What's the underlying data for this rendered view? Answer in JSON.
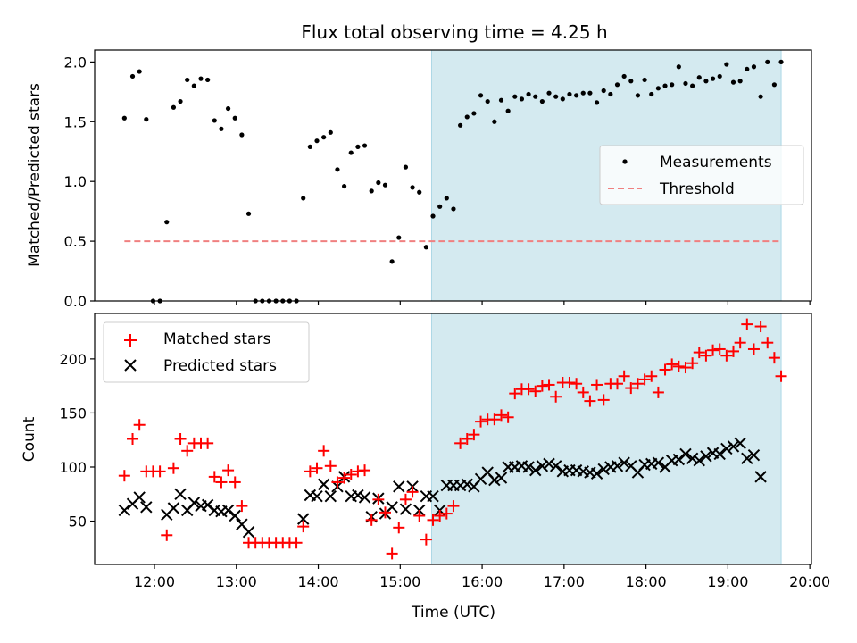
{
  "figure": {
    "title": "Flux total observing time = 4.25 h",
    "xlabel": "Time (UTC)",
    "colors": {
      "highlight": "#d4eaf0",
      "highlight_edge": "#add8e6",
      "measurement": "#000000",
      "threshold": "#f08080",
      "matched": "#ff0000",
      "predicted": "#000000"
    }
  },
  "chart_data": [
    {
      "type": "scatter",
      "ylabel": "Matched/Predicted stars",
      "ylim": [
        0,
        2.1
      ],
      "yticks": [
        0.0,
        0.5,
        1.0,
        1.5,
        2.0
      ],
      "ytick_labels": [
        "0.0",
        "0.5",
        "1.0",
        "1.5",
        "2.0"
      ],
      "xlim_hours": [
        11.27,
        20.02
      ],
      "highlight_span": [
        "15:23",
        "19:39"
      ],
      "grid": false,
      "legend_position": "center-right",
      "threshold": {
        "name": "Threshold",
        "y": 0.5,
        "x_range": [
          "11:38",
          "19:39"
        ]
      },
      "series": [
        {
          "name": "Measurements",
          "marker": "dot",
          "x": [
            "11:38",
            "11:44",
            "11:49",
            "11:54",
            "11:59",
            "12:04",
            "12:09",
            "12:14",
            "12:19",
            "12:24",
            "12:29",
            "12:34",
            "12:39",
            "12:44",
            "12:49",
            "12:54",
            "12:59",
            "13:04",
            "13:09",
            "13:14",
            "13:19",
            "13:24",
            "13:29",
            "13:34",
            "13:39",
            "13:44",
            "13:49",
            "13:54",
            "13:59",
            "14:04",
            "14:09",
            "14:14",
            "14:19",
            "14:24",
            "14:29",
            "14:34",
            "14:39",
            "14:44",
            "14:49",
            "14:54",
            "14:59",
            "15:04",
            "15:09",
            "15:14",
            "15:19",
            "15:24",
            "15:29",
            "15:34",
            "15:39",
            "15:44",
            "15:49",
            "15:54",
            "15:59",
            "16:04",
            "16:09",
            "16:14",
            "16:19",
            "16:24",
            "16:29",
            "16:34",
            "16:39",
            "16:44",
            "16:49",
            "16:54",
            "16:59",
            "17:04",
            "17:09",
            "17:14",
            "17:19",
            "17:24",
            "17:29",
            "17:34",
            "17:39",
            "17:44",
            "17:49",
            "17:54",
            "17:59",
            "18:04",
            "18:09",
            "18:14",
            "18:19",
            "18:24",
            "18:29",
            "18:34",
            "18:39",
            "18:44",
            "18:49",
            "18:54",
            "18:59",
            "19:04",
            "19:09",
            "19:14",
            "19:19",
            "19:24",
            "19:29",
            "19:34",
            "19:39"
          ],
          "y": [
            1.53,
            1.88,
            1.92,
            1.52,
            0.0,
            0.0,
            0.66,
            1.62,
            1.67,
            1.85,
            1.8,
            1.86,
            1.85,
            1.51,
            1.44,
            1.61,
            1.53,
            1.39,
            0.73,
            0.0,
            0.0,
            0.0,
            0.0,
            0.0,
            0.0,
            0.0,
            0.86,
            1.29,
            1.34,
            1.37,
            1.41,
            1.1,
            0.96,
            1.24,
            1.29,
            1.3,
            0.92,
            0.99,
            0.97,
            0.33,
            0.53,
            1.12,
            0.95,
            0.91,
            0.45,
            0.71,
            0.79,
            0.86,
            0.77,
            1.47,
            1.54,
            1.57,
            1.72,
            1.67,
            1.5,
            1.68,
            1.59,
            1.71,
            1.69,
            1.73,
            1.71,
            1.67,
            1.74,
            1.71,
            1.69,
            1.73,
            1.72,
            1.74,
            1.74,
            1.66,
            1.76,
            1.73,
            1.81,
            1.88,
            1.84,
            1.72,
            1.85,
            1.73,
            1.78,
            1.8,
            1.81,
            1.96,
            1.82,
            1.8,
            1.87,
            1.84,
            1.86,
            1.88,
            1.98,
            1.83,
            1.84,
            1.94,
            1.96,
            1.71,
            2.0,
            1.81,
            2.0
          ]
        }
      ]
    },
    {
      "type": "scatter",
      "ylabel": "Count",
      "ylim": [
        10,
        242
      ],
      "yticks": [
        50,
        100,
        150,
        200
      ],
      "ytick_labels": [
        "50",
        "100",
        "150",
        "200"
      ],
      "xlim_hours": [
        11.27,
        20.02
      ],
      "xticks": [
        "12:00",
        "13:00",
        "14:00",
        "15:00",
        "16:00",
        "17:00",
        "18:00",
        "19:00",
        "20:00"
      ],
      "highlight_span": [
        "15:23",
        "19:39"
      ],
      "grid": false,
      "legend_position": "top-left",
      "series": [
        {
          "name": "Matched stars",
          "marker": "plus",
          "x": [
            "11:38",
            "11:44",
            "11:49",
            "11:54",
            "11:59",
            "12:04",
            "12:09",
            "12:14",
            "12:19",
            "12:24",
            "12:29",
            "12:34",
            "12:39",
            "12:44",
            "12:49",
            "12:54",
            "12:59",
            "13:04",
            "13:09",
            "13:14",
            "13:19",
            "13:24",
            "13:29",
            "13:34",
            "13:39",
            "13:44",
            "13:49",
            "13:54",
            "13:59",
            "14:04",
            "14:09",
            "14:14",
            "14:19",
            "14:24",
            "14:29",
            "14:34",
            "14:39",
            "14:44",
            "14:49",
            "14:54",
            "14:59",
            "15:04",
            "15:09",
            "15:14",
            "15:19",
            "15:24",
            "15:29",
            "15:34",
            "15:39",
            "15:44",
            "15:49",
            "15:54",
            "15:59",
            "16:04",
            "16:09",
            "16:14",
            "16:19",
            "16:24",
            "16:29",
            "16:34",
            "16:39",
            "16:44",
            "16:49",
            "16:54",
            "16:59",
            "17:04",
            "17:09",
            "17:14",
            "17:19",
            "17:24",
            "17:29",
            "17:34",
            "17:39",
            "17:44",
            "17:49",
            "17:54",
            "17:59",
            "18:04",
            "18:09",
            "18:14",
            "18:19",
            "18:24",
            "18:29",
            "18:34",
            "18:39",
            "18:44",
            "18:49",
            "18:54",
            "18:59",
            "19:04",
            "19:09",
            "19:14",
            "19:19",
            "19:24",
            "19:29",
            "19:34",
            "19:39"
          ],
          "y": [
            92,
            126,
            139,
            96,
            96,
            96,
            37,
            99,
            126,
            115,
            122,
            122,
            122,
            91,
            86,
            97,
            86,
            64,
            30,
            30,
            30,
            30,
            30,
            30,
            30,
            30,
            45,
            96,
            99,
            115,
            101,
            86,
            90,
            93,
            96,
            97,
            51,
            70,
            58,
            20,
            44,
            70,
            77,
            55,
            33,
            51,
            55,
            57,
            64,
            122,
            126,
            130,
            142,
            144,
            144,
            148,
            146,
            168,
            172,
            172,
            170,
            175,
            176,
            165,
            178,
            178,
            177,
            169,
            161,
            176,
            162,
            177,
            177,
            184,
            173,
            177,
            181,
            184,
            169,
            190,
            195,
            193,
            192,
            196,
            206,
            203,
            208,
            209,
            203,
            207,
            215,
            232,
            209,
            230,
            215,
            201,
            184
          ]
        },
        {
          "name": "Predicted stars",
          "marker": "x",
          "x": [
            "11:38",
            "11:44",
            "11:49",
            "11:54",
            "11:59",
            "12:04",
            "12:09",
            "12:14",
            "12:19",
            "12:24",
            "12:29",
            "12:34",
            "12:39",
            "12:44",
            "12:49",
            "12:54",
            "12:59",
            "13:04",
            "13:09",
            "13:14",
            "13:19",
            "13:24",
            "13:29",
            "13:34",
            "13:39",
            "13:44",
            "13:49",
            "13:54",
            "13:59",
            "14:04",
            "14:09",
            "14:14",
            "14:19",
            "14:24",
            "14:29",
            "14:34",
            "14:39",
            "14:44",
            "14:49",
            "14:54",
            "14:59",
            "15:04",
            "15:09",
            "15:14",
            "15:19",
            "15:24",
            "15:29",
            "15:34",
            "15:39",
            "15:44",
            "15:49",
            "15:54",
            "15:59",
            "16:04",
            "16:09",
            "16:14",
            "16:19",
            "16:24",
            "16:29",
            "16:34",
            "16:39",
            "16:44",
            "16:49",
            "16:54",
            "16:59",
            "17:04",
            "17:09",
            "17:14",
            "17:19",
            "17:24",
            "17:29",
            "17:34",
            "17:39",
            "17:44",
            "17:49",
            "17:54",
            "17:59",
            "18:04",
            "18:09",
            "18:14",
            "18:19",
            "18:24",
            "18:29",
            "18:34",
            "18:39",
            "18:44",
            "18:49",
            "18:54",
            "18:59",
            "19:04",
            "19:09",
            "19:14",
            "19:19",
            "19:24",
            "19:29",
            "19:34",
            "19:39"
          ],
          "y": [
            60,
            66,
            72,
            63,
            null,
            null,
            56,
            62,
            75,
            60,
            67,
            64,
            65,
            60,
            59,
            60,
            55,
            47,
            40,
            null,
            null,
            null,
            null,
            null,
            null,
            null,
            52,
            74,
            73,
            84,
            73,
            82,
            91,
            73,
            74,
            72,
            54,
            71,
            57,
            63,
            82,
            61,
            82,
            60,
            73,
            73,
            60,
            83,
            83,
            83,
            84,
            82,
            89,
            95,
            88,
            90,
            100,
            100,
            101,
            100,
            97,
            101,
            103,
            101,
            96,
            97,
            97,
            96,
            95,
            94,
            98,
            100,
            101,
            104,
            101,
            95,
            102,
            103,
            104,
            100,
            106,
            107,
            112,
            108,
            106,
            110,
            113,
            112,
            117,
            119,
            122,
            108,
            111,
            91,
            null,
            null,
            null
          ]
        }
      ]
    }
  ]
}
